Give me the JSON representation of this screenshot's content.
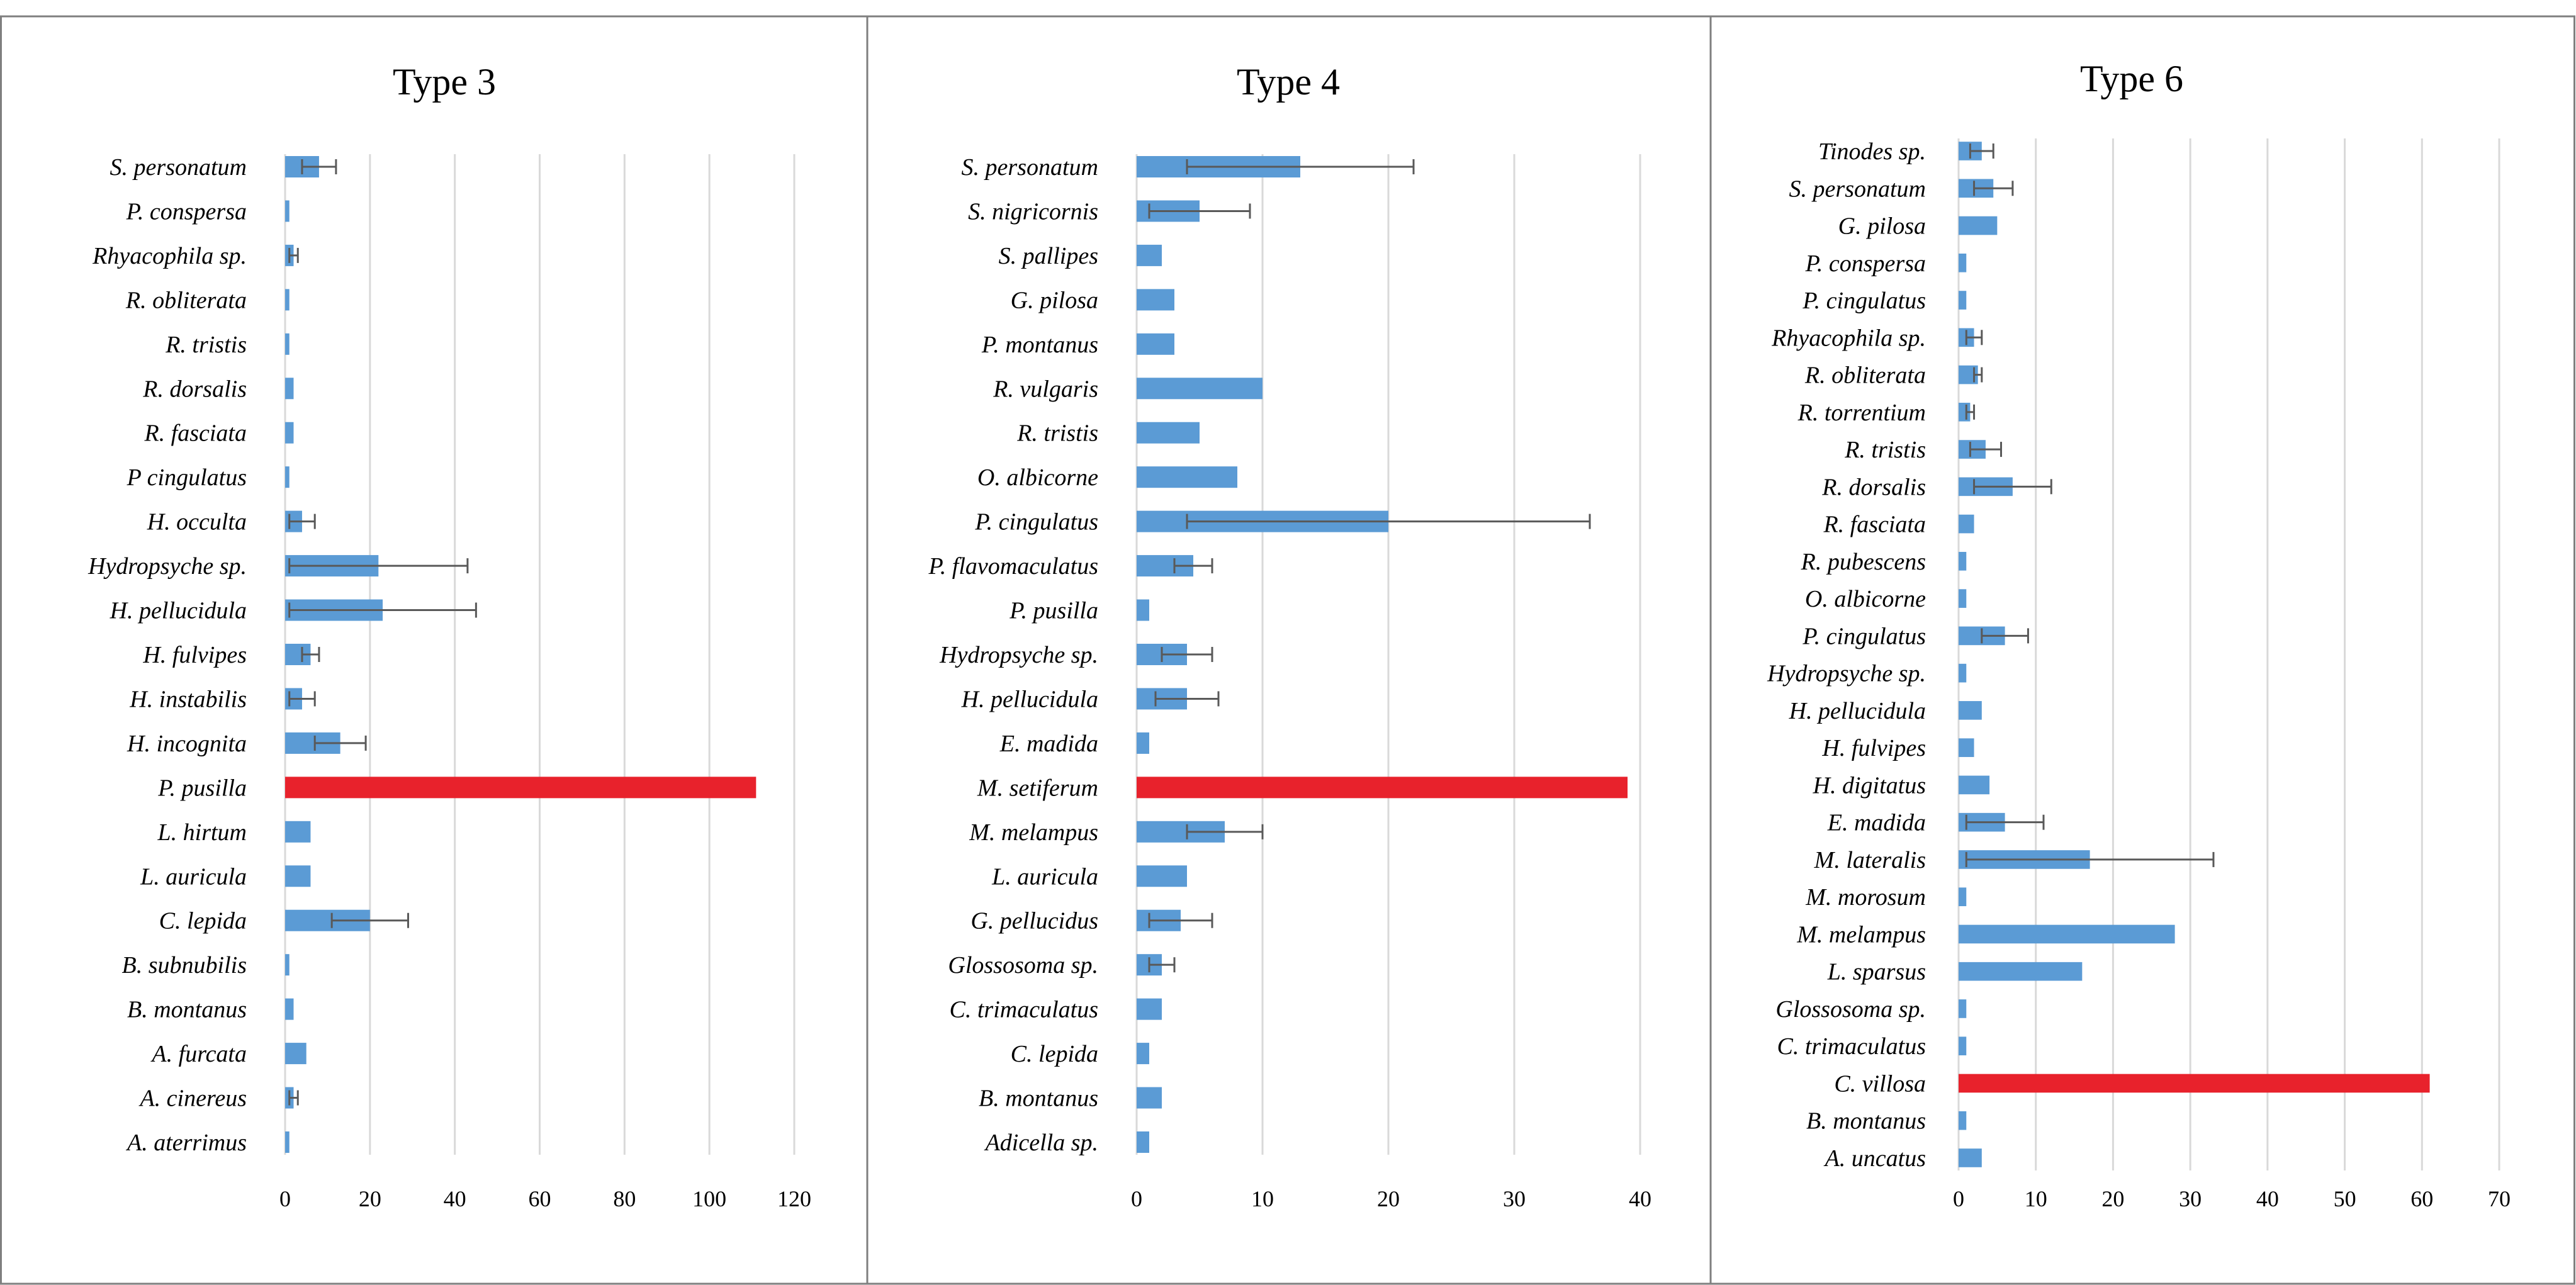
{
  "chart_data": [
    {
      "type": "bar",
      "orientation": "horizontal",
      "title": "Type 3",
      "xlim": [
        0,
        120
      ],
      "ticks": [
        0,
        20,
        40,
        60,
        80,
        100,
        120
      ],
      "grid": true,
      "categories": [
        "S. personatum",
        "P. conspersa",
        "Rhyacophila sp.",
        "R. obliterata",
        "R. tristis",
        "R. dorsalis",
        "R. fasciata",
        "P cingulatus",
        "H. occulta",
        "Hydropsyche sp.",
        "H. pellucidula",
        "H. fulvipes",
        "H. instabilis",
        "H. incognita",
        "P. pusilla",
        "L. hirtum",
        "L. auricula",
        "C. lepida",
        "B. subnubilis",
        "B. montanus",
        "A. furcata",
        "A. cinereus",
        "A. aterrimus"
      ],
      "values": [
        8,
        1,
        2,
        1,
        1,
        2,
        2,
        1,
        4,
        22,
        23,
        6,
        4,
        13,
        111,
        6,
        6,
        20,
        1,
        2,
        5,
        2,
        1
      ],
      "errors": [
        4,
        0,
        1,
        0,
        0,
        0,
        0,
        0,
        3,
        21,
        22,
        2,
        3,
        6,
        0,
        0,
        0,
        9,
        0,
        0,
        0,
        1,
        0
      ],
      "highlight_index": 14,
      "bar_color": "#5b9bd5",
      "highlight_color": "#e8222c"
    },
    {
      "type": "bar",
      "orientation": "horizontal",
      "title": "Type 4",
      "xlim": [
        0,
        40
      ],
      "ticks": [
        0,
        10,
        20,
        30,
        40
      ],
      "grid": true,
      "categories": [
        "S. personatum",
        "S. nigricornis",
        "S. pallipes",
        "G. pilosa",
        "P. montanus",
        "R. vulgaris",
        "R. tristis",
        "O. albicorne",
        "P. cingulatus",
        "P. flavomaculatus",
        "P. pusilla",
        "Hydropsyche sp.",
        "H. pellucidula",
        "E. madida",
        "M. setiferum",
        "M. melampus",
        "L. auricula",
        "G. pellucidus",
        "Glossosoma sp.",
        "C. trimaculatus",
        "C. lepida",
        "B. montanus",
        "Adicella sp."
      ],
      "values": [
        13,
        5,
        2,
        3,
        3,
        10,
        5,
        8,
        20,
        4.5,
        1,
        4,
        4,
        1,
        39,
        7,
        4,
        3.5,
        2,
        2,
        1,
        2,
        1
      ],
      "errors": [
        9,
        4,
        0,
        0,
        0,
        0,
        0,
        0,
        16,
        1.5,
        0,
        2,
        2.5,
        0,
        0,
        3,
        0,
        2.5,
        1,
        0,
        0,
        0,
        0
      ],
      "highlight_index": 14,
      "bar_color": "#5b9bd5",
      "highlight_color": "#e8222c"
    },
    {
      "type": "bar",
      "orientation": "horizontal",
      "title": "Type 6",
      "xlim": [
        0,
        70
      ],
      "ticks": [
        0,
        10,
        20,
        30,
        40,
        50,
        60,
        70
      ],
      "grid": true,
      "categories": [
        "Tinodes sp.",
        "S. personatum",
        "G. pilosa",
        "P. conspersa",
        "P. cingulatus",
        "Rhyacophila sp.",
        "R. obliterata",
        "R. torrentium",
        "R. tristis",
        "R. dorsalis",
        "R. fasciata",
        "R. pubescens",
        "O. albicorne",
        "P. cingulatus",
        "Hydropsyche sp.",
        "H. pellucidula",
        "H. fulvipes",
        "H. digitatus",
        "E. madida",
        "M. lateralis",
        "M. morosum",
        "M. melampus",
        "L. sparsus",
        "Glossosoma sp.",
        "C. trimaculatus",
        "C. villosa",
        "B. montanus",
        "A. uncatus"
      ],
      "values": [
        3,
        4.5,
        5,
        1,
        1,
        2,
        2.5,
        1.5,
        3.5,
        7,
        2,
        1,
        1,
        6,
        1,
        3,
        2,
        4,
        6,
        17,
        1,
        28,
        16,
        1,
        1,
        61,
        1,
        3
      ],
      "errors": [
        1.5,
        2.5,
        0,
        0,
        0,
        1,
        0.5,
        0.5,
        2,
        5,
        0,
        0,
        0,
        3,
        0,
        0,
        0,
        0,
        5,
        16,
        0,
        0,
        0,
        0,
        0,
        0,
        0,
        0
      ],
      "highlight_index": 25,
      "bar_color": "#5b9bd5",
      "highlight_color": "#e8222c"
    }
  ]
}
